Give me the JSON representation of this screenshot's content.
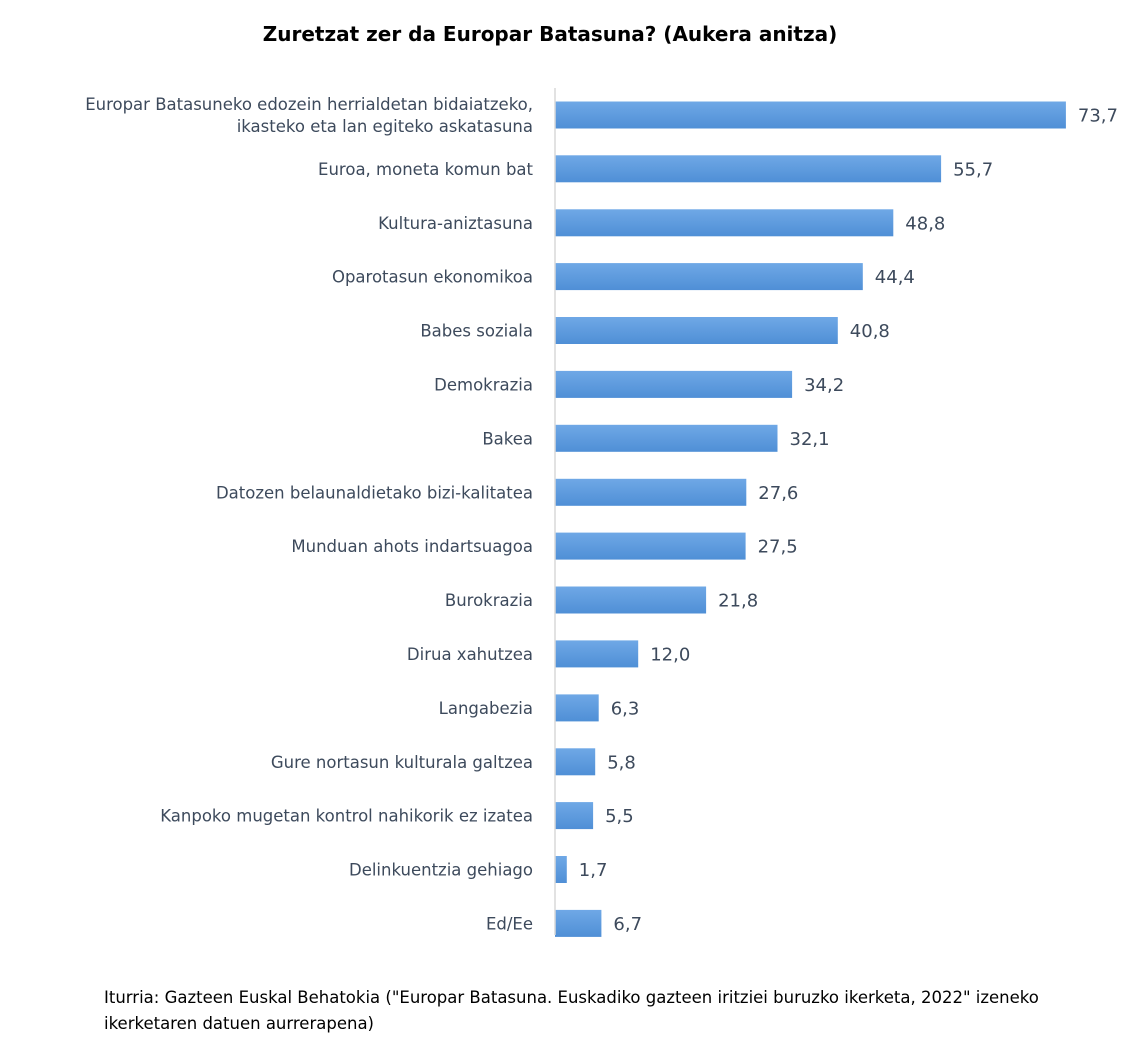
{
  "chart_data": {
    "type": "bar",
    "orientation": "horizontal",
    "title": "Zuretzat zer da Europar Batasuna? (Aukera anitza)",
    "categories": [
      [
        "Europar Batasuneko edozein herrialdetan bidaiatzeko,",
        "ikasteko eta lan egiteko askatasuna"
      ],
      [
        "Euroa, moneta komun bat"
      ],
      [
        "Kultura-aniztasuna"
      ],
      [
        "Oparotasun ekonomikoa"
      ],
      [
        "Babes soziala"
      ],
      [
        "Demokrazia"
      ],
      [
        "Bakea"
      ],
      [
        "Datozen belaunaldietako bizi-kalitatea"
      ],
      [
        "Munduan ahots indartsuagoa"
      ],
      [
        "Burokrazia"
      ],
      [
        "Dirua xahutzea"
      ],
      [
        "Langabezia"
      ],
      [
        "Gure nortasun kulturala galtzea"
      ],
      [
        "Kanpoko mugetan kontrol nahikorik ez izatea"
      ],
      [
        "Delinkuentzia gehiago"
      ],
      [
        "Ed/Ee"
      ]
    ],
    "values": [
      73.7,
      55.7,
      48.8,
      44.4,
      40.8,
      34.2,
      32.1,
      27.6,
      27.5,
      21.8,
      12.0,
      6.3,
      5.8,
      5.5,
      1.7,
      6.7
    ],
    "value_labels": [
      "73,7",
      "55,7",
      "48,8",
      "44,4",
      "40,8",
      "34,2",
      "32,1",
      "27,6",
      "27,5",
      "21,8",
      "12,0",
      "6,3",
      "5,8",
      "5,5",
      "1,7",
      "6,7"
    ],
    "bar_color": "#4f8fd6",
    "bar_color_light": "#6fa8e6",
    "xlim": [
      0,
      74
    ],
    "grid": false,
    "legend": "none"
  },
  "source_note": "Iturria: Gazteen Euskal Behatokia (\"Europar Batasuna. Euskadiko gazteen iritziei buruzko ikerketa, 2022\" izeneko ikerketaren datuen aurrerapena)"
}
